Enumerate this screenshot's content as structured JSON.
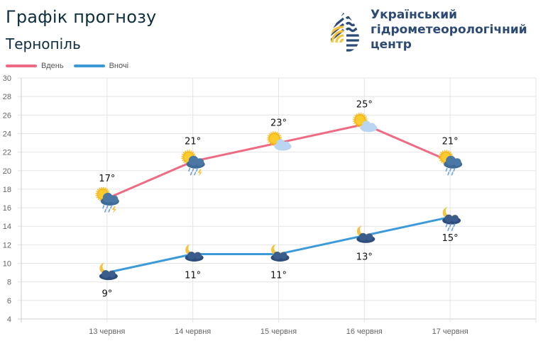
{
  "header": {
    "title": "Графік прогнозу",
    "city": "Тернопіль"
  },
  "logo": {
    "icon": "water-drop-logo-icon",
    "org_line1": "Український",
    "org_line2": "гідрометеорологічний",
    "org_line3": "центр",
    "colors": {
      "navy": "#2c4a73",
      "yellow": "#f5c33b"
    }
  },
  "legend": [
    {
      "label": "Вдень",
      "color": "#ef6b84"
    },
    {
      "label": "Вночі",
      "color": "#3d9ad8"
    }
  ],
  "chart_data": {
    "type": "line",
    "title": "Графік прогнозу — Тернопіль",
    "xlabel": "",
    "ylabel": "",
    "ylim": [
      4,
      30
    ],
    "yticks": [
      4,
      6,
      8,
      10,
      12,
      14,
      16,
      18,
      20,
      22,
      24,
      26,
      28,
      30
    ],
    "grid": true,
    "legend_position": "top-left",
    "categories": [
      "13 червня",
      "14 червня",
      "15 червня",
      "16 червня",
      "17 червня"
    ],
    "series": [
      {
        "name": "Вдень",
        "color": "#ef6b84",
        "values": [
          17,
          21,
          23,
          25,
          21
        ],
        "labels": [
          "17°",
          "21°",
          "23°",
          "25°",
          "21°"
        ],
        "icons": [
          "sun-cloud-rain-thunder-icon",
          "sun-cloud-rain-thunder-icon",
          "sun-light-cloud-icon",
          "sun-light-cloud-icon",
          "sun-cloud-rain-icon"
        ]
      },
      {
        "name": "Вночі",
        "color": "#3d9ad8",
        "values": [
          9,
          11,
          11,
          13,
          15
        ],
        "labels": [
          "9°",
          "11°",
          "11°",
          "13°",
          "15°"
        ],
        "icons": [
          "moon-cloud-icon",
          "moon-cloud-icon",
          "moon-cloud-icon",
          "moon-cloud-icon",
          "moon-cloud-rain-icon"
        ]
      }
    ]
  }
}
